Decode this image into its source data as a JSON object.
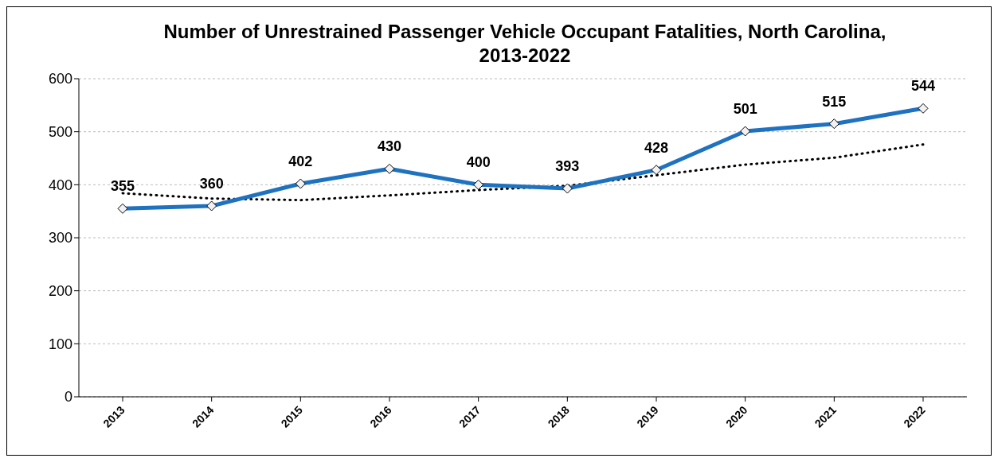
{
  "chart_data": {
    "type": "line",
    "title": "Number of Unrestrained Passenger Vehicle Occupant Fatalities, North Carolina, 2013-2022",
    "categories": [
      "2013",
      "2014",
      "2015",
      "2016",
      "2017",
      "2018",
      "2019",
      "2020",
      "2021",
      "2022"
    ],
    "series": [
      {
        "color": "#1f72c0",
        "values": [
          355,
          360,
          402,
          430,
          400,
          393,
          428,
          501,
          515,
          544
        ],
        "marker": "diamond",
        "line_style": "solid",
        "data_labels": true
      },
      {
        "type": "line",
        "color": "#000000",
        "values": [
          384,
          374,
          371,
          380,
          390,
          398,
          418,
          438,
          451,
          476
        ],
        "marker": "none",
        "line_style": "dotted"
      }
    ],
    "ylim": [
      0,
      600
    ],
    "yticks": [
      0,
      100,
      200,
      300,
      400,
      500,
      600
    ],
    "grid": "y",
    "legend": false
  }
}
